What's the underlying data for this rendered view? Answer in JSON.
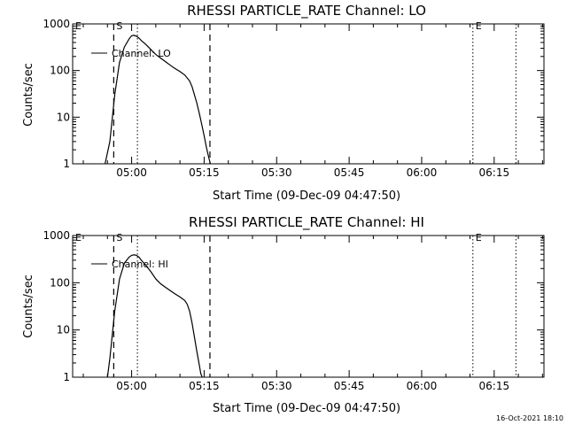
{
  "chart_data": [
    {
      "type": "line",
      "title": "RHESSI PARTICLE_RATE Channel: LO",
      "xlabel": "Start Time (09-Dec-09 04:47:50)",
      "ylabel": "Counts/sec",
      "y_scale": "log",
      "ylim": [
        1,
        1000
      ],
      "y_ticks": [
        1,
        10,
        100,
        1000
      ],
      "y_tick_labels": [
        "1",
        "10",
        "100",
        "1000"
      ],
      "x_tick_labels": [
        "05:00",
        "05:15",
        "05:30",
        "05:45",
        "06:00",
        "06:15"
      ],
      "x_tick_minutes": [
        0,
        15,
        30,
        45,
        60,
        75
      ],
      "xlim_minutes": [
        -12.2,
        85.3
      ],
      "legend": "Channel: LO",
      "legend_position": "top-left",
      "markers": [
        {
          "label": "E",
          "minute": -12.2,
          "style": "dotted"
        },
        {
          "label": "S",
          "minute": -3.7,
          "style": "dashed"
        },
        {
          "label": "",
          "minute": 1.2,
          "style": "dotted"
        },
        {
          "label": "",
          "minute": 16.2,
          "style": "dashed"
        },
        {
          "label": "E",
          "minute": 70.6,
          "style": "dotted"
        },
        {
          "label": "",
          "minute": 79.5,
          "style": "dotted"
        }
      ],
      "series": [
        {
          "name": "Channel: LO",
          "x": [
            -5.5,
            -4.5,
            -3.5,
            -2.5,
            -1.5,
            -0.5,
            0.0,
            0.5,
            1.0,
            1.5,
            2.0,
            3.0,
            4.0,
            5.0,
            6.0,
            7.0,
            8.0,
            9.0,
            10.0,
            11.0,
            12.0,
            12.5,
            13.0,
            13.5,
            14.0,
            14.5,
            15.0,
            15.5,
            16.0,
            16.3
          ],
          "y": [
            1.0,
            3.0,
            30,
            150,
            320,
            480,
            560,
            570,
            545,
            500,
            440,
            360,
            280,
            220,
            185,
            155,
            130,
            110,
            95,
            80,
            60,
            45,
            30,
            20,
            12,
            7,
            4,
            2.2,
            1.3,
            1.0
          ]
        }
      ]
    },
    {
      "type": "line",
      "title": "RHESSI PARTICLE_RATE Channel: HI",
      "xlabel": "Start Time (09-Dec-09 04:47:50)",
      "ylabel": "Counts/sec",
      "y_scale": "log",
      "ylim": [
        1,
        1000
      ],
      "y_ticks": [
        1,
        10,
        100,
        1000
      ],
      "y_tick_labels": [
        "1",
        "10",
        "100",
        "1000"
      ],
      "x_tick_labels": [
        "05:00",
        "05:15",
        "05:30",
        "05:45",
        "06:00",
        "06:15"
      ],
      "x_tick_minutes": [
        0,
        15,
        30,
        45,
        60,
        75
      ],
      "xlim_minutes": [
        -12.2,
        85.3
      ],
      "legend": "Channel: HI",
      "legend_position": "top-left",
      "markers": [
        {
          "label": "E",
          "minute": -12.2,
          "style": "dotted"
        },
        {
          "label": "S",
          "minute": -3.7,
          "style": "dashed"
        },
        {
          "label": "",
          "minute": 1.2,
          "style": "dotted"
        },
        {
          "label": "",
          "minute": 16.2,
          "style": "dashed"
        },
        {
          "label": "E",
          "minute": 70.6,
          "style": "dotted"
        },
        {
          "label": "",
          "minute": 79.5,
          "style": "dotted"
        }
      ],
      "series": [
        {
          "name": "Channel: HI",
          "x": [
            -5.0,
            -4.5,
            -3.5,
            -2.5,
            -1.5,
            -0.5,
            0.0,
            0.5,
            1.0,
            1.5,
            2.0,
            3.0,
            4.0,
            5.0,
            6.0,
            7.0,
            8.0,
            9.0,
            10.0,
            11.0,
            11.5,
            12.0,
            12.5,
            13.0,
            13.5,
            14.0,
            14.3,
            14.6
          ],
          "y": [
            1.0,
            2.5,
            25,
            120,
            260,
            350,
            380,
            390,
            380,
            350,
            300,
            230,
            170,
            120,
            95,
            80,
            68,
            58,
            50,
            42,
            35,
            25,
            14,
            7,
            3.5,
            1.8,
            1.2,
            1.0
          ]
        }
      ]
    }
  ],
  "footer": {
    "timestamp": "16-Oct-2021 18:10"
  }
}
